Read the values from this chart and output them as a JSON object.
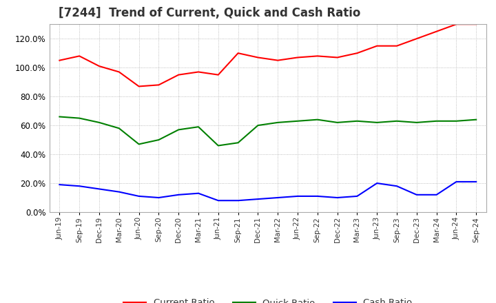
{
  "title": "[7244]  Trend of Current, Quick and Cash Ratio",
  "x_labels": [
    "Jun-19",
    "Sep-19",
    "Dec-19",
    "Mar-20",
    "Jun-20",
    "Sep-20",
    "Dec-20",
    "Mar-21",
    "Jun-21",
    "Sep-21",
    "Dec-21",
    "Mar-22",
    "Jun-22",
    "Sep-22",
    "Dec-22",
    "Mar-23",
    "Jun-23",
    "Sep-23",
    "Dec-23",
    "Mar-24",
    "Jun-24",
    "Sep-24"
  ],
  "current_ratio": [
    105,
    108,
    101,
    97,
    87,
    88,
    95,
    97,
    95,
    110,
    107,
    105,
    107,
    108,
    107,
    110,
    115,
    115,
    120,
    125,
    130,
    130
  ],
  "quick_ratio": [
    66,
    65,
    62,
    58,
    47,
    50,
    57,
    59,
    46,
    48,
    60,
    62,
    63,
    64,
    62,
    63,
    62,
    63,
    62,
    63,
    63,
    64
  ],
  "cash_ratio": [
    19,
    18,
    16,
    14,
    11,
    10,
    12,
    13,
    8,
    8,
    9,
    10,
    11,
    11,
    10,
    11,
    20,
    18,
    12,
    12,
    21,
    21
  ],
  "current_color": "#ff0000",
  "quick_color": "#008000",
  "cash_color": "#0000ff",
  "ylim": [
    0,
    130
  ],
  "yticks": [
    0,
    20,
    40,
    60,
    80,
    100,
    120
  ],
  "background_color": "#ffffff",
  "grid_color": "#aaaaaa",
  "title_fontsize": 12,
  "legend_labels": [
    "Current Ratio",
    "Quick Ratio",
    "Cash Ratio"
  ]
}
